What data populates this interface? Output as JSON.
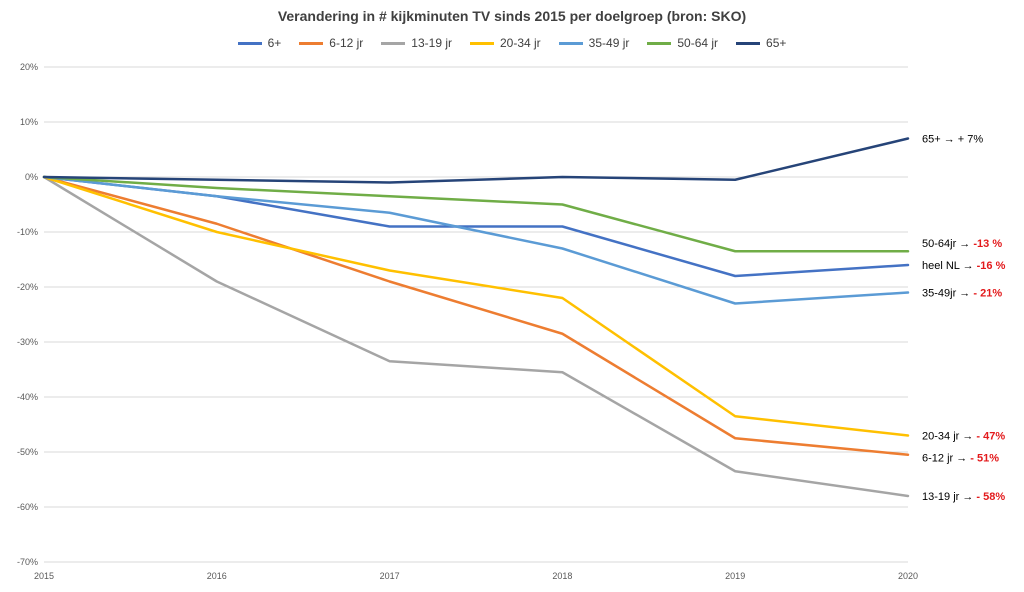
{
  "chart_data": {
    "type": "line",
    "title": "Verandering in # kijkminuten TV sinds 2015 per doelgroep (bron: SKO)",
    "xlabel": "",
    "ylabel": "",
    "x": [
      "2015",
      "2016",
      "2017",
      "2018",
      "2019",
      "2020"
    ],
    "ylim": [
      -70,
      20
    ],
    "yticks": [
      20,
      10,
      0,
      -10,
      -20,
      -30,
      -40,
      -50,
      -60,
      -70
    ],
    "ytick_labels": [
      "20%",
      "10%",
      "0%",
      "-10%",
      "-20%",
      "-30%",
      "-40%",
      "-50%",
      "-60%",
      "-70%"
    ],
    "grid": "horizontal",
    "legend": "top",
    "series": [
      {
        "name": "6+",
        "color": "#4472c4",
        "values": [
          0,
          -3.5,
          -9,
          -9,
          -18,
          -16
        ]
      },
      {
        "name": "6-12 jr",
        "color": "#ed7d31",
        "values": [
          0,
          -8.5,
          -19,
          -28.5,
          -47.5,
          -50.5
        ]
      },
      {
        "name": "13-19 jr",
        "color": "#a5a5a5",
        "values": [
          0,
          -19,
          -33.5,
          -35.5,
          -53.5,
          -58
        ]
      },
      {
        "name": "20-34 jr",
        "color": "#ffc000",
        "values": [
          0,
          -10,
          -17,
          -22,
          -43.5,
          -47
        ]
      },
      {
        "name": "35-49 jr",
        "color": "#5b9bd5",
        "values": [
          0,
          -3.5,
          -6.5,
          -13,
          -23,
          -21
        ]
      },
      {
        "name": "50-64 jr",
        "color": "#70ad47",
        "values": [
          0,
          -2,
          -3.5,
          -5,
          -13.5,
          -13.5
        ]
      },
      {
        "name": "65+",
        "color": "#264478",
        "values": [
          0,
          -0.5,
          -1,
          0,
          -0.5,
          7
        ]
      }
    ],
    "annotations": [
      {
        "series": "65+",
        "text": "65+ → ",
        "highlight": "+ 7%",
        "highlight_color": "#000000",
        "y": 7
      },
      {
        "series": "50-64 jr",
        "text": "50-64jr → ",
        "highlight": "-13 %",
        "highlight_color": "#e31a1c",
        "y": -12
      },
      {
        "series": "6+",
        "text": "heel NL → ",
        "highlight": "-16 %",
        "highlight_color": "#e31a1c",
        "y": -16
      },
      {
        "series": "35-49 jr",
        "text": "35-49jr → ",
        "highlight": "- 21%",
        "highlight_color": "#e31a1c",
        "y": -21
      },
      {
        "series": "20-34 jr",
        "text": "20-34 jr → ",
        "highlight": "- 47%",
        "highlight_color": "#e31a1c",
        "y": -47
      },
      {
        "series": "6-12 jr",
        "text": "6-12 jr → ",
        "highlight": "- 51%",
        "highlight_color": "#e31a1c",
        "y": -51
      },
      {
        "series": "13-19 jr",
        "text": "13-19 jr → ",
        "highlight": "- 58%",
        "highlight_color": "#e31a1c",
        "y": -58
      }
    ]
  }
}
